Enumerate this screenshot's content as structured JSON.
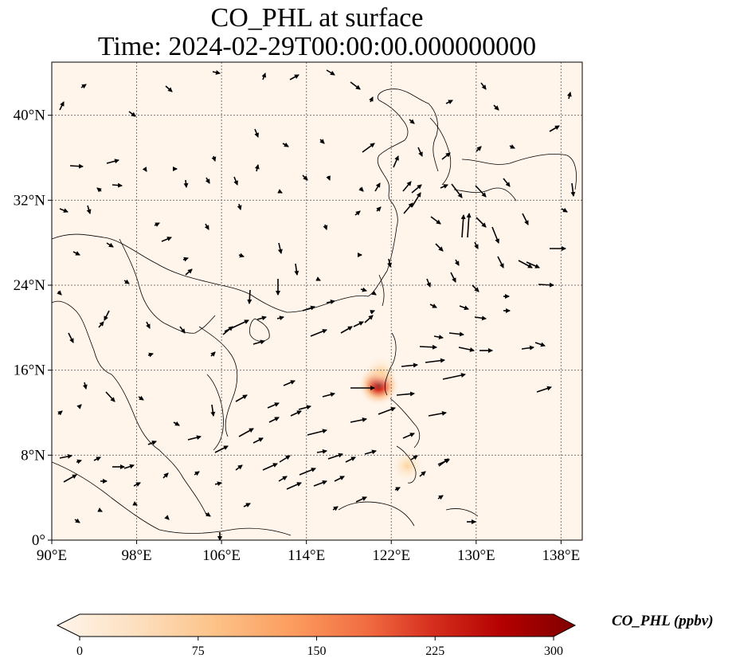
{
  "title": {
    "line1": "CO_PHL at surface",
    "line2": "Time: 2024-02-29T00:00:00.000000000"
  },
  "map": {
    "lon_range": [
      90,
      140
    ],
    "lat_range": [
      0,
      45
    ],
    "lon_ticks": [
      {
        "value": 90,
        "label": "90°E"
      },
      {
        "value": 98,
        "label": "98°E"
      },
      {
        "value": 106,
        "label": "106°E"
      },
      {
        "value": 114,
        "label": "114°E"
      },
      {
        "value": 122,
        "label": "122°E"
      },
      {
        "value": 130,
        "label": "130°E"
      },
      {
        "value": 138,
        "label": "138°E"
      }
    ],
    "lat_ticks": [
      {
        "value": 0,
        "label": "0°"
      },
      {
        "value": 8,
        "label": "8°N"
      },
      {
        "value": 16,
        "label": "16°N"
      },
      {
        "value": 24,
        "label": "24°N"
      },
      {
        "value": 32,
        "label": "32°N"
      },
      {
        "value": 40,
        "label": "40°N"
      }
    ],
    "gridlines": true,
    "background_color": "#fff5eb"
  },
  "colorbar": {
    "label": "CO_PHL (ppbv)",
    "min": 0,
    "max": 300,
    "ticks": [
      "0",
      "75",
      "150",
      "225",
      "300"
    ],
    "colormap": "OrRd",
    "colors": [
      "#fff5eb",
      "#fdd49e",
      "#fdbb84",
      "#fc8d59",
      "#ef6548",
      "#d7301f",
      "#b30000",
      "#7f0000"
    ]
  },
  "concentration_hotspots": [
    {
      "lon": 120.8,
      "lat": 14.6,
      "value": 300
    },
    {
      "lon": 121.0,
      "lat": 15.8,
      "value": 40
    },
    {
      "lon": 123.5,
      "lat": 7.0,
      "value": 20
    }
  ]
}
